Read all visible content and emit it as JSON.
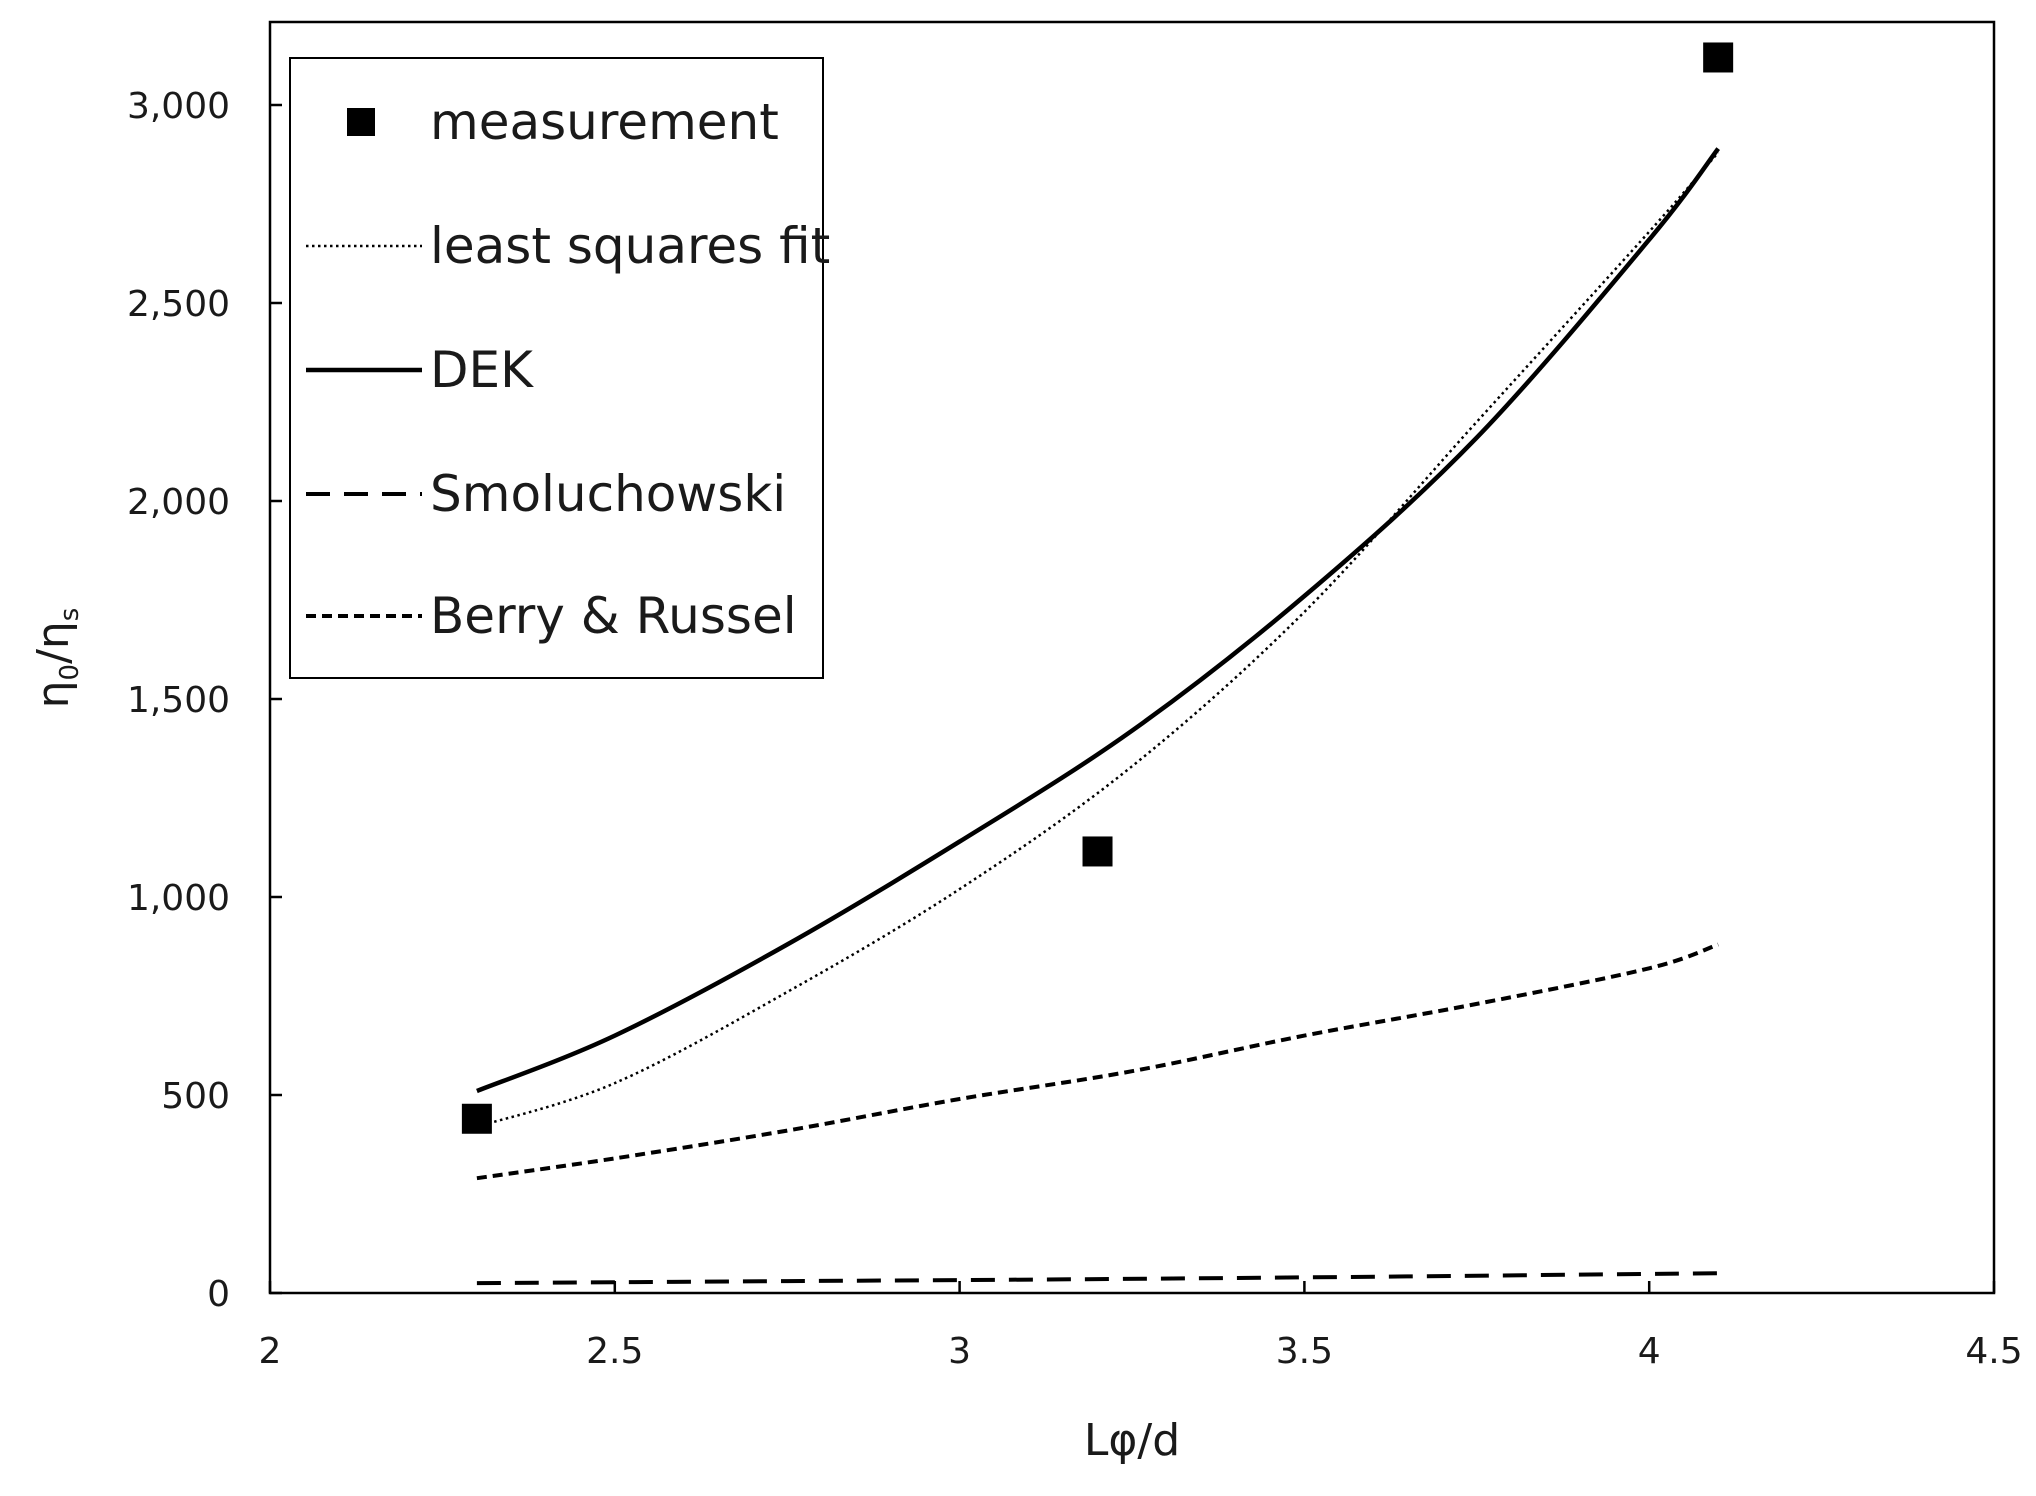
{
  "chart_data": {
    "type": "line",
    "title": "",
    "xlabel": "Lφ/d",
    "ylabel": "η0/ηs",
    "ylabel_parts": {
      "main": "η",
      "sub1": "0",
      "sep": "/η",
      "sub2": "s"
    },
    "xlim": [
      2,
      4.5
    ],
    "ylim": [
      0,
      3000
    ],
    "x_ticks": [
      2,
      2.5,
      3,
      3.5,
      4,
      4.5
    ],
    "x_tick_labels": [
      "2",
      "2.5",
      "3",
      "3.5",
      "4",
      "4.5"
    ],
    "y_ticks": [
      0,
      500,
      1000,
      1500,
      2000,
      2500,
      3000
    ],
    "y_tick_labels": [
      "0",
      "500",
      "1,000",
      "1,500",
      "2,000",
      "2,500",
      "3,000"
    ],
    "grid": false,
    "legend_position": "top-left",
    "series": [
      {
        "name": "measurement",
        "style": "square-marker",
        "x": [
          2.3,
          3.2,
          4.1
        ],
        "y": [
          440,
          1115,
          3120
        ]
      },
      {
        "name": "least squares fit",
        "style": "dotted",
        "x": [
          2.3,
          2.5,
          2.75,
          3.0,
          3.25,
          3.5,
          3.75,
          4.0,
          4.1
        ],
        "y": [
          420,
          530,
          760,
          1020,
          1330,
          1720,
          2200,
          2680,
          2880
        ]
      },
      {
        "name": "DEK",
        "style": "solid",
        "x": [
          2.3,
          2.5,
          2.75,
          3.0,
          3.25,
          3.5,
          3.75,
          4.0,
          4.1
        ],
        "y": [
          510,
          650,
          880,
          1140,
          1420,
          1760,
          2160,
          2660,
          2890
        ]
      },
      {
        "name": "Smoluchowski",
        "style": "long-dash",
        "x": [
          2.3,
          2.75,
          3.2,
          3.65,
          4.1
        ],
        "y": [
          25,
          30,
          35,
          42,
          50
        ]
      },
      {
        "name": "Berry & Russel",
        "style": "short-dash",
        "x": [
          2.3,
          2.5,
          2.75,
          3.0,
          3.25,
          3.5,
          3.75,
          4.0,
          4.1
        ],
        "y": [
          290,
          340,
          410,
          490,
          560,
          650,
          730,
          820,
          880
        ]
      }
    ]
  },
  "colors": {
    "line": "#000000",
    "text": "#1a1a1a",
    "background": "#ffffff"
  }
}
